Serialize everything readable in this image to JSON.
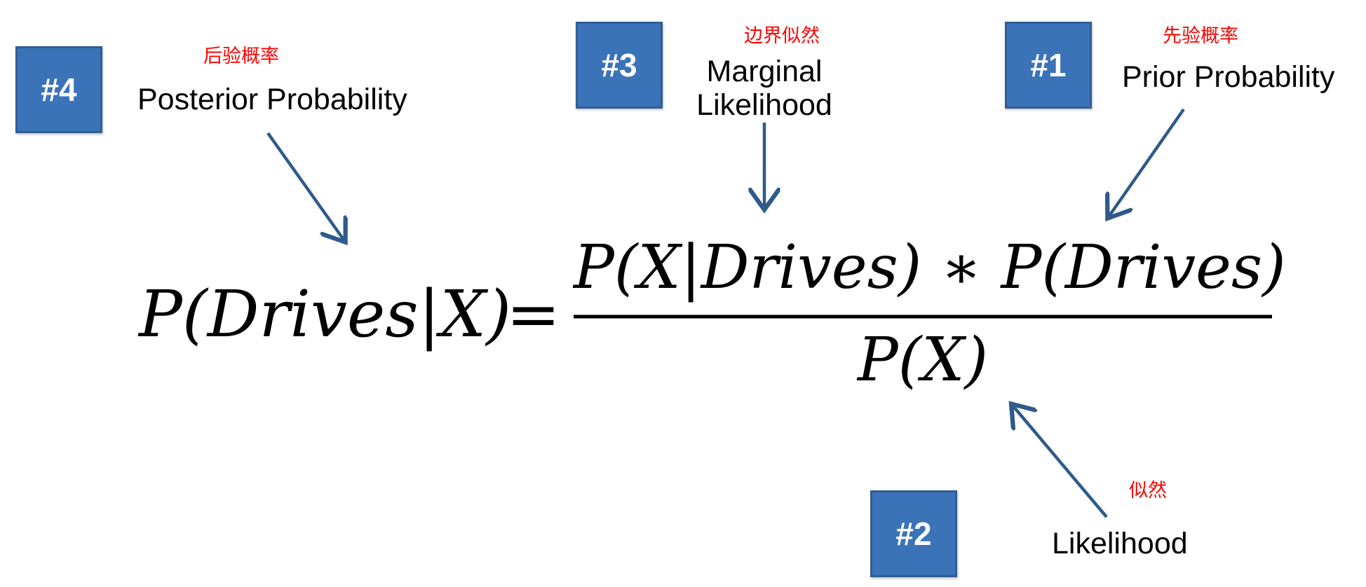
{
  "badges": {
    "b4": "#4",
    "b3": "#3",
    "b1": "#1",
    "b2": "#2"
  },
  "labels": {
    "posterior": {
      "en": "Posterior Probability",
      "cn": "后验概率"
    },
    "marginal": {
      "en_line1": "Marginal",
      "en_line2": "Likelihood",
      "cn": "边界似然"
    },
    "prior": {
      "en": "Prior Probability",
      "cn": "先验概率"
    },
    "likelihood": {
      "en": "Likelihood",
      "cn": "似然"
    }
  },
  "formula": {
    "lhs": "P(Drives|X)",
    "equals": "=",
    "numerator": "P(X|Drives) ∗ P(Drives)",
    "denominator": "P(X)"
  },
  "colors": {
    "badge_fill": "#3b73b9",
    "badge_border": "#2f5f92",
    "arrow": "#2f5a8a",
    "annotation_red": "#ff0000"
  }
}
